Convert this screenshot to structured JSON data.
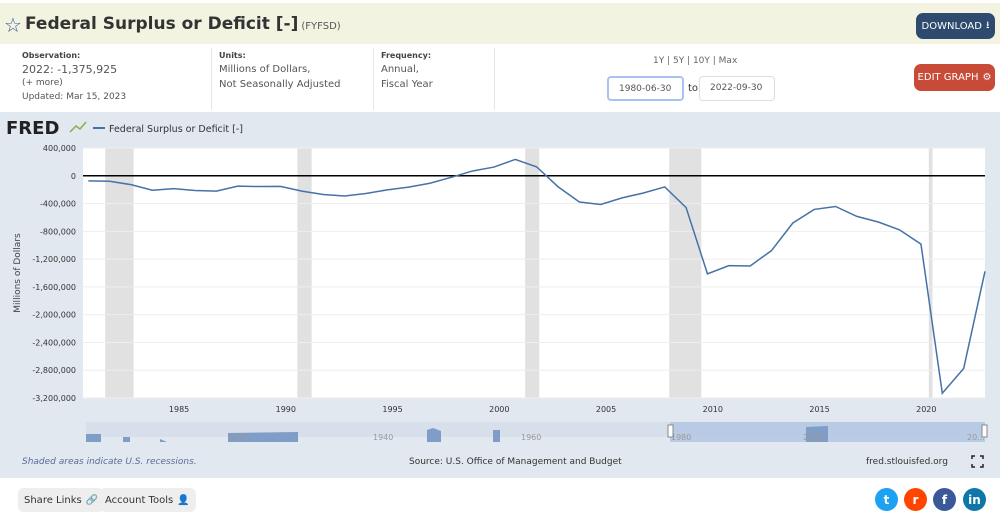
{
  "header": {
    "title": "Federal Surplus or Deficit [-]",
    "series_id": "(FYFSD)",
    "download_label": "DOWNLOAD"
  },
  "info": {
    "observation_label": "Observation:",
    "observation_value": "2022: -1,375,925",
    "more": "(+ more)",
    "updated": "Updated: Mar 15, 2023",
    "units_label": "Units:",
    "units_1": "Millions of Dollars,",
    "units_2": "Not Seasonally Adjusted",
    "frequency_label": "Frequency:",
    "frequency_1": "Annual,",
    "frequency_2": "Fiscal Year"
  },
  "range": {
    "presets": "1Y | 5Y | 10Y | Max",
    "start": "1980-06-30",
    "to": "to",
    "end": "2022-09-30"
  },
  "edit_graph_label": "EDIT GRAPH",
  "chart_data": {
    "type": "line",
    "logo": "FRED",
    "legend": "Federal Surplus or Deficit [-]",
    "ylabel": "Millions of Dollars",
    "ylim": [
      -3200000,
      400000
    ],
    "yticks": [
      400000,
      0,
      -400000,
      -800000,
      -1200000,
      -1600000,
      -2000000,
      -2400000,
      -2800000,
      -3200000
    ],
    "ytick_labels": [
      "400,000",
      "0",
      "-400,000",
      "-800,000",
      "-1,200,000",
      "-1,600,000",
      "-2,000,000",
      "-2,400,000",
      "-2,800,000",
      "-3,200,000"
    ],
    "xlim": [
      "1980-06-30",
      "2022-09-30"
    ],
    "xticks": [
      "1985",
      "1990",
      "1995",
      "2000",
      "2005",
      "2010",
      "2015",
      "2020"
    ],
    "line_color": "#4572a7",
    "x": [
      1980,
      1981,
      1982,
      1983,
      1984,
      1985,
      1986,
      1987,
      1988,
      1989,
      1990,
      1991,
      1992,
      1993,
      1994,
      1995,
      1996,
      1997,
      1998,
      1999,
      2000,
      2001,
      2002,
      2003,
      2004,
      2005,
      2006,
      2007,
      2008,
      2009,
      2010,
      2011,
      2012,
      2013,
      2014,
      2015,
      2016,
      2017,
      2018,
      2019,
      2020,
      2021,
      2022
    ],
    "values": [
      -73830,
      -78968,
      -127977,
      -207802,
      -185367,
      -212308,
      -221227,
      -149730,
      -155178,
      -152639,
      -221036,
      -269238,
      -290321,
      -255051,
      -203186,
      -163952,
      -107431,
      -21884,
      69270,
      125610,
      236241,
      128236,
      -157758,
      -377585,
      -412727,
      -318346,
      -248181,
      -160701,
      -458553,
      -1412688,
      -1294373,
      -1299599,
      -1076573,
      -679775,
      -484602,
      -441960,
      -584651,
      -665446,
      -779137,
      -983588,
      -3131917,
      -2775306,
      -1375925
    ],
    "recessions": [
      [
        1981.54,
        1982.87
      ],
      [
        1990.54,
        1991.21
      ],
      [
        2001.21,
        2001.87
      ],
      [
        2007.96,
        2009.46
      ],
      [
        2020.12,
        2020.29
      ]
    ],
    "navigator_labels": [
      "1920",
      "1940",
      "1960",
      "1980",
      "2000",
      "20..."
    ]
  },
  "panel": {
    "recession_note": "Shaded areas indicate U.S. recessions.",
    "source": "Source: U.S. Office of Management and Budget",
    "site": "fred.stlouisfed.org"
  },
  "footer": {
    "share_links": "Share Links",
    "account_tools": "Account Tools"
  }
}
